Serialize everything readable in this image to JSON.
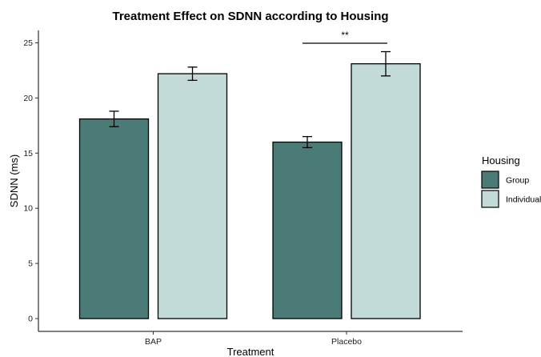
{
  "chart_data": {
    "type": "bar",
    "title": "Treatment Effect on SDNN according to Housing",
    "xlabel": "Treatment",
    "ylabel": "SDNN (ms)",
    "categories": [
      "BAP",
      "Placebo"
    ],
    "ylim": [
      -1,
      26
    ],
    "yticks": [
      0,
      5,
      10,
      15,
      20,
      25
    ],
    "grid": false,
    "legend": {
      "title": "Housing",
      "placement": "right"
    },
    "series": [
      {
        "name": "Group",
        "color": "#4a7b76",
        "values": [
          18.1,
          16.0
        ],
        "error": [
          0.7,
          0.5
        ]
      },
      {
        "name": "Individual",
        "color": "#c2dbd9",
        "values": [
          22.2,
          23.1
        ],
        "error": [
          0.6,
          1.1
        ]
      }
    ],
    "annotations": [
      {
        "text": "**",
        "category": "Placebo"
      }
    ]
  }
}
